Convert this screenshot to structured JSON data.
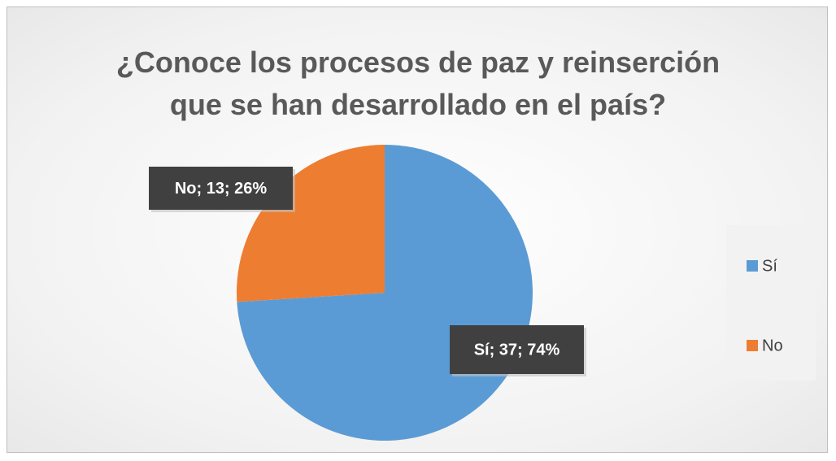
{
  "chart_data": {
    "type": "pie",
    "title": "¿Conoce los procesos de paz y reinserción\nque se han desarrollado en el país?",
    "categories": [
      "Sí",
      "No"
    ],
    "values": [
      37,
      13
    ],
    "value_labels": [
      "Sí; 37; 74%",
      "No; 13; 26%"
    ],
    "colors": [
      "#5b9bd5",
      "#ed7d31"
    ],
    "legend": "right"
  }
}
